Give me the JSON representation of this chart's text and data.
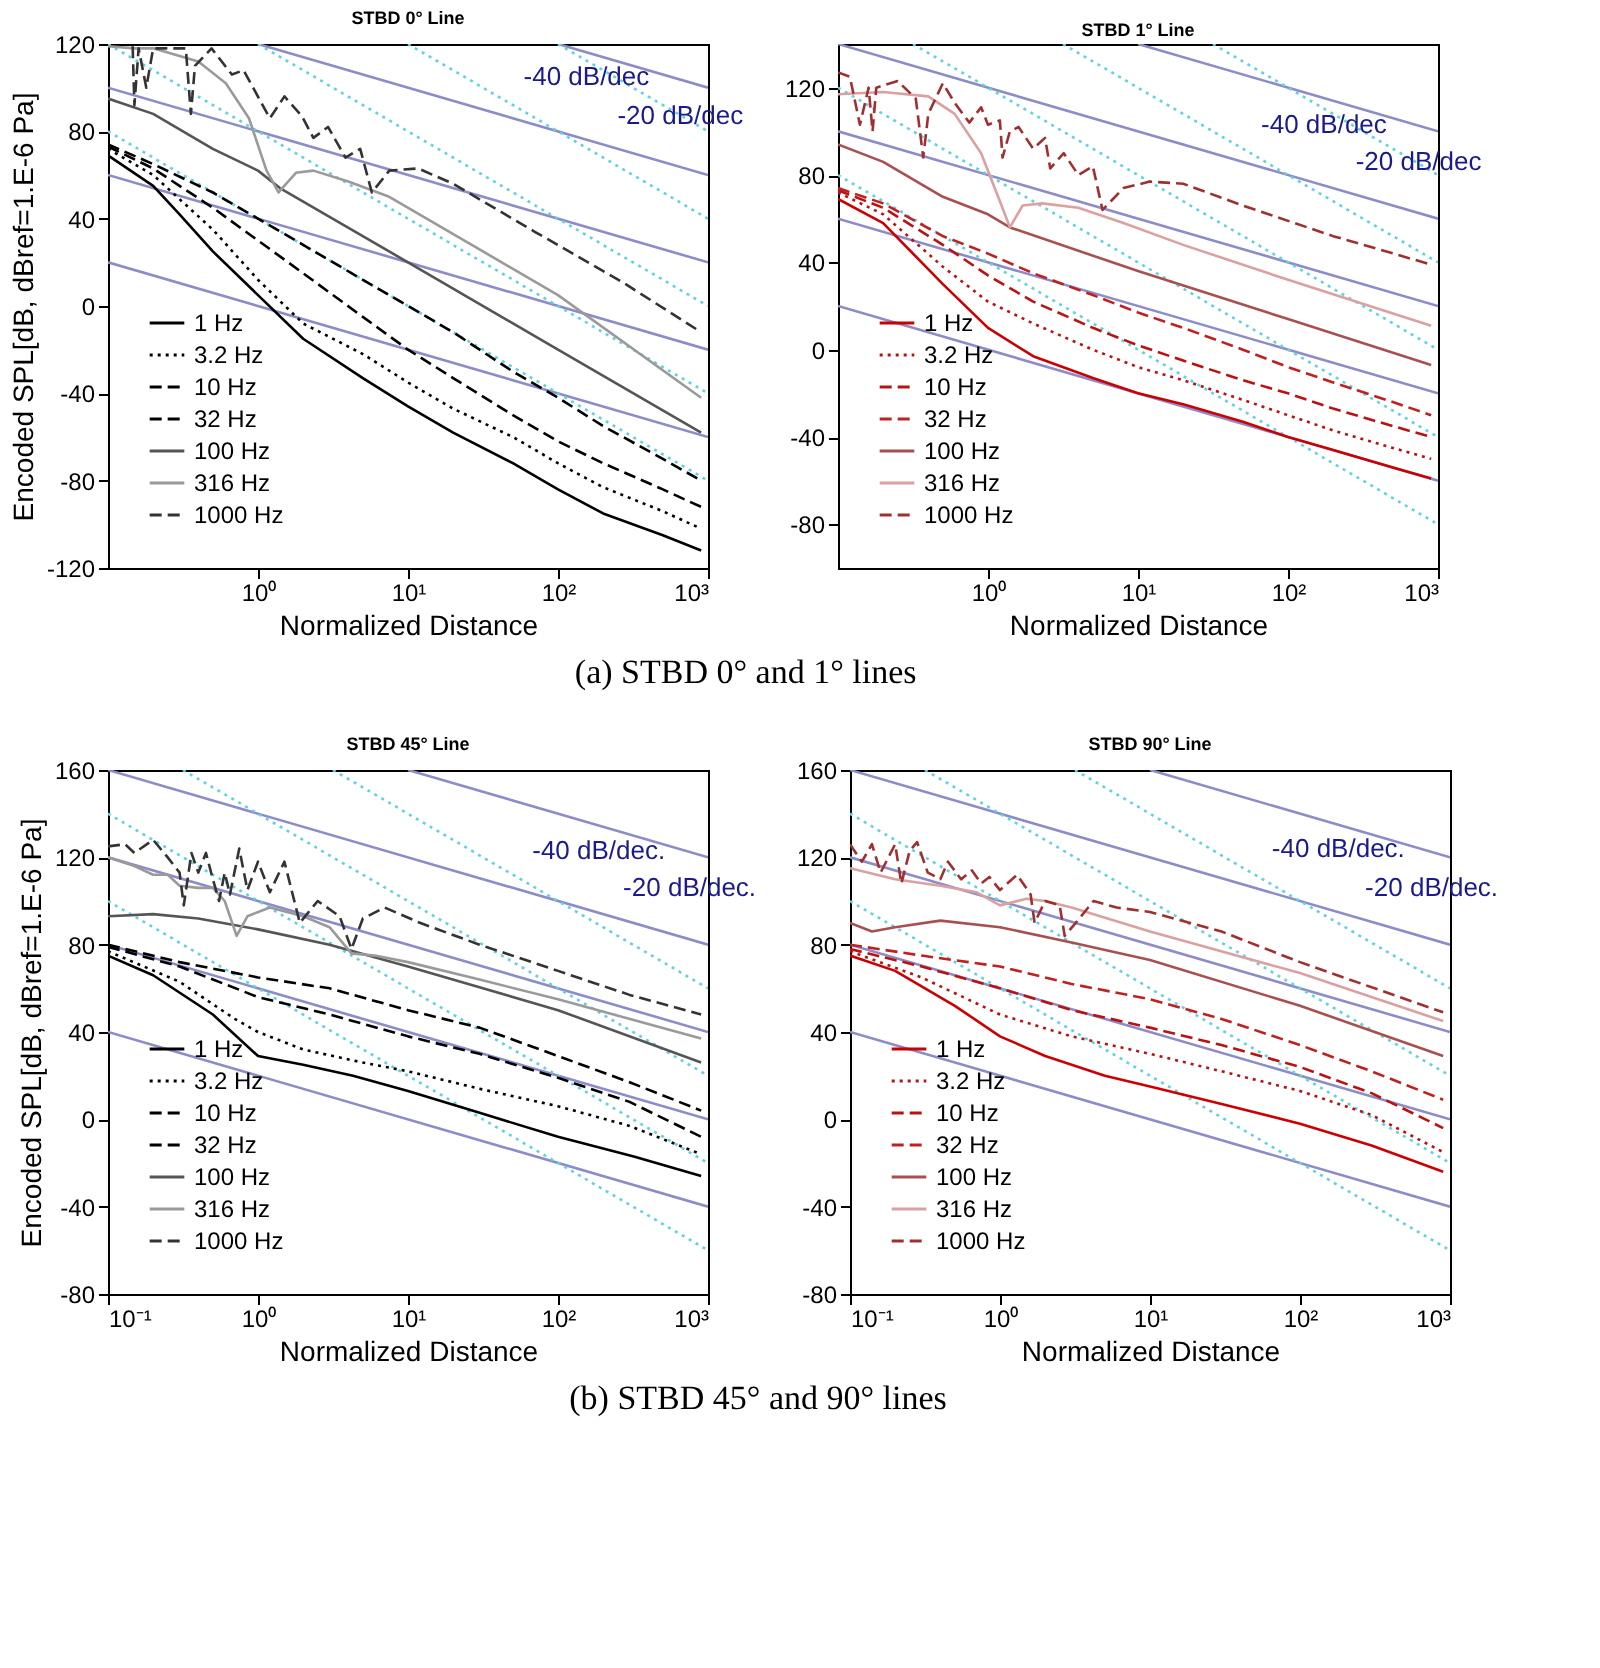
{
  "chart_data": [
    {
      "type": "line",
      "title": "STBD 0° Line",
      "xlabel": "Normalized Distance",
      "ylabel": "Encoded SPL[dB, dBref=1.E-6 Pa]",
      "log": "x",
      "xlim": [
        0.1,
        1000
      ],
      "ylim": [
        -120,
        120
      ],
      "xticks": [
        {
          "value": 1,
          "label": "10⁰"
        },
        {
          "value": 10,
          "label": "10¹"
        },
        {
          "value": 100,
          "label": "10²"
        },
        {
          "value": 1000,
          "label": "10³"
        }
      ],
      "yticks": [
        -120,
        -80,
        -40,
        0,
        40,
        80,
        120
      ],
      "legend": "bottom left",
      "annotations": [
        {
          "text": "-40 dB/dec",
          "x": 49,
          "y": 92
        },
        {
          "text": "-20 dB/dec",
          "x": 207,
          "y": 74
        },
        "(a) STBD 0° and 1° lines"
      ],
      "series": [
        {
          "name": "1 Hz",
          "color": "#000000",
          "line_style": "solid",
          "x": [
            0.1,
            0.2,
            0.3,
            0.5,
            1,
            2,
            5,
            10,
            20,
            50,
            100,
            200,
            500,
            900
          ],
          "values": [
            69,
            55,
            42,
            25,
            5,
            -15,
            -33,
            -46,
            -58,
            -72,
            -84,
            -95,
            -105,
            -112
          ]
        },
        {
          "name": "3.2 Hz",
          "color": "#000000",
          "line_style": "dotted",
          "x": [
            0.1,
            0.2,
            0.5,
            1,
            2,
            5,
            10,
            20,
            50,
            100,
            200,
            500,
            900
          ],
          "values": [
            72,
            60,
            35,
            12,
            -8,
            -22,
            -35,
            -47,
            -60,
            -72,
            -83,
            -94,
            -102
          ]
        },
        {
          "name": "10 Hz",
          "color": "#000000",
          "line_style": "dashed",
          "x": [
            0.1,
            0.2,
            0.5,
            1,
            2,
            5,
            10,
            20,
            50,
            100,
            200,
            500,
            900
          ],
          "values": [
            73,
            63,
            45,
            30,
            15,
            -5,
            -20,
            -33,
            -50,
            -62,
            -72,
            -84,
            -92
          ]
        },
        {
          "name": "32 Hz",
          "color": "#000000",
          "line_style": "dashed",
          "x": [
            0.1,
            0.2,
            0.5,
            1,
            2,
            5,
            10,
            20,
            50,
            100,
            200,
            500,
            900
          ],
          "values": [
            74,
            65,
            52,
            40,
            28,
            12,
            0,
            -12,
            -30,
            -42,
            -55,
            -70,
            -80
          ]
        },
        {
          "name": "100 Hz",
          "color": "#555555",
          "line_style": "solid",
          "x": [
            0.1,
            0.2,
            0.5,
            1,
            1.4,
            10,
            100,
            900
          ],
          "values": [
            95,
            88,
            72,
            62,
            54,
            20,
            -20,
            -58
          ]
        },
        {
          "name": "316 Hz",
          "color": "#9a9a9a",
          "line_style": "solid",
          "x": [
            0.1,
            0.15,
            0.2,
            0.4,
            0.61,
            0.87,
            1.14,
            1.37,
            1.79,
            2.34,
            4,
            7.5,
            100,
            900
          ],
          "values": [
            119,
            118,
            118,
            112,
            102,
            86,
            62,
            52,
            61,
            62,
            57,
            50,
            5,
            -42
          ]
        },
        {
          "name": "1000 Hz",
          "color": "#333333",
          "line_style": "dashed",
          "x": [
            0.146,
            0.15,
            0.16,
            0.18,
            0.2,
            0.33,
            0.357,
            0.38,
            0.49,
            0.67,
            0.8,
            1.2,
            1.5,
            1.96,
            2.34,
            2.93,
            3.83,
            4.8,
            5.74,
            7.5,
            11.7,
            20,
            70,
            268,
            900
          ],
          "values": [
            119,
            92,
            118,
            100,
            118,
            118,
            88,
            110,
            118,
            106,
            108,
            86,
            96,
            87,
            77,
            82,
            68,
            72,
            52,
            62,
            63,
            56,
            34,
            11,
            -12
          ]
        },
        {
          "color": "#8c8cc8",
          "line_style": "solid",
          "x": [
            0.1,
            1000
          ],
          "values": [
            20,
            -60
          ]
        },
        {
          "color": "#8c8cc8",
          "line_style": "solid",
          "x": [
            0.1,
            1000
          ],
          "values": [
            60,
            -20
          ]
        },
        {
          "color": "#8c8cc8",
          "line_style": "solid",
          "x": [
            0.1,
            1000
          ],
          "values": [
            100,
            20
          ]
        },
        {
          "color": "#8c8cc8",
          "line_style": "solid",
          "x": [
            1,
            1000
          ],
          "values": [
            120,
            60
          ]
        },
        {
          "color": "#8c8cc8",
          "line_style": "solid",
          "x": [
            100,
            1000
          ],
          "values": [
            120,
            100
          ]
        },
        {
          "color": "#5fd3e0",
          "line_style": "dotted",
          "x": [
            0.1,
            1000
          ],
          "values": [
            80,
            -80
          ]
        },
        {
          "color": "#5fd3e0",
          "line_style": "dotted",
          "x": [
            0.1,
            1000
          ],
          "values": [
            120,
            -40
          ]
        },
        {
          "color": "#5fd3e0",
          "line_style": "dotted",
          "x": [
            1,
            1000
          ],
          "values": [
            120,
            0
          ]
        },
        {
          "color": "#5fd3e0",
          "line_style": "dotted",
          "x": [
            10,
            1000
          ],
          "values": [
            120,
            40
          ]
        },
        {
          "color": "#5fd3e0",
          "line_style": "dotted",
          "x": [
            100,
            1000
          ],
          "values": [
            120,
            80
          ]
        }
      ]
    },
    {
      "type": "line",
      "title": "STBD 1° Line",
      "xlabel": "Normalized Distance",
      "log": "x",
      "xlim": [
        0.1,
        1000
      ],
      "ylim": [
        -100,
        140
      ],
      "xticks": [
        {
          "value": 1,
          "label": "10⁰"
        },
        {
          "value": 10,
          "label": "10¹"
        },
        {
          "value": 100,
          "label": "10²"
        },
        {
          "value": 1000,
          "label": "10³"
        }
      ],
      "yticks": [
        -80,
        -40,
        0,
        40,
        80,
        120
      ],
      "legend": "bottom left",
      "annotations": [
        {
          "text": "-40 dB/dec",
          "x": 55,
          "y": 90
        },
        {
          "text": "-20 dB/dec",
          "x": 235,
          "y": 73
        }
      ],
      "series": [
        {
          "name": "1 Hz",
          "color": "#cc0000",
          "line_style": "solid",
          "x": [
            0.1,
            0.2,
            0.5,
            1,
            2,
            5,
            10,
            20,
            50,
            100,
            200,
            500,
            900
          ],
          "values": [
            69,
            58,
            30,
            10,
            -3,
            -13,
            -20,
            -25,
            -33,
            -40,
            -46,
            -54,
            -59
          ]
        },
        {
          "name": "3.2 Hz",
          "color": "#bb1111",
          "line_style": "dotted",
          "x": [
            0.1,
            0.2,
            0.5,
            1,
            2,
            5,
            10,
            20,
            50,
            100,
            200,
            500,
            900
          ],
          "values": [
            72,
            62,
            38,
            22,
            12,
            0,
            -8,
            -14,
            -23,
            -30,
            -37,
            -45,
            -50
          ]
        },
        {
          "name": "10 Hz",
          "color": "#bb1111",
          "line_style": "dashed",
          "x": [
            0.1,
            0.2,
            0.5,
            1,
            2,
            5,
            10,
            20,
            50,
            100,
            200,
            500,
            900
          ],
          "values": [
            73,
            65,
            48,
            34,
            22,
            10,
            2,
            -5,
            -14,
            -20,
            -27,
            -35,
            -40
          ]
        },
        {
          "name": "32 Hz",
          "color": "#c02020",
          "line_style": "dashed",
          "x": [
            0.1,
            0.2,
            0.5,
            1,
            2,
            5,
            10,
            20,
            50,
            100,
            200,
            500,
            900
          ],
          "values": [
            74,
            67,
            52,
            44,
            35,
            25,
            17,
            10,
            0,
            -8,
            -15,
            -24,
            -30
          ]
        },
        {
          "name": "100 Hz",
          "color": "#a85050",
          "line_style": "solid",
          "x": [
            0.1,
            0.2,
            0.5,
            1,
            1.4,
            10,
            100,
            900
          ],
          "values": [
            94,
            86,
            70,
            62,
            56,
            36,
            14,
            -7
          ]
        },
        {
          "name": "316 Hz",
          "color": "#dba0a0",
          "line_style": "solid",
          "x": [
            0.1,
            0.2,
            0.4,
            0.6,
            0.9,
            1.2,
            1.4,
            1.7,
            2.3,
            4,
            8,
            20,
            100,
            900
          ],
          "values": [
            117,
            118,
            116,
            108,
            90,
            68,
            56,
            66,
            67,
            65,
            58,
            48,
            32,
            11
          ]
        },
        {
          "name": "1000 Hz",
          "color": "#a03030",
          "line_style": "dashed",
          "x": [
            0.1,
            0.12,
            0.14,
            0.16,
            0.17,
            0.18,
            0.25,
            0.33,
            0.37,
            0.4,
            0.5,
            0.6,
            0.75,
            0.9,
            1.0,
            1.2,
            1.25,
            1.4,
            1.6,
            2,
            2.4,
            2.6,
            3.2,
            4,
            5,
            5.8,
            8,
            12,
            20,
            50,
            200,
            900
          ],
          "values": [
            127,
            125,
            103,
            120,
            100,
            120,
            123,
            115,
            88,
            108,
            122,
            113,
            104,
            111,
            103,
            105,
            88,
            100,
            102,
            92,
            97,
            83,
            90,
            80,
            84,
            64,
            74,
            77,
            76,
            66,
            52,
            39
          ]
        },
        {
          "color": "#8c8cc8",
          "line_style": "solid",
          "x": [
            0.1,
            1000
          ],
          "values": [
            20,
            -60
          ]
        },
        {
          "color": "#8c8cc8",
          "line_style": "solid",
          "x": [
            0.1,
            1000
          ],
          "values": [
            60,
            -20
          ]
        },
        {
          "color": "#8c8cc8",
          "line_style": "solid",
          "x": [
            0.1,
            1000
          ],
          "values": [
            100,
            20
          ]
        },
        {
          "color": "#8c8cc8",
          "line_style": "solid",
          "x": [
            0.1,
            1000
          ],
          "values": [
            140,
            60
          ]
        },
        {
          "color": "#8c8cc8",
          "line_style": "solid",
          "x": [
            10,
            1000
          ],
          "values": [
            140,
            100
          ]
        },
        {
          "color": "#5fd3e0",
          "line_style": "dotted",
          "x": [
            0.1,
            1000
          ],
          "values": [
            80,
            -80
          ]
        },
        {
          "color": "#5fd3e0",
          "line_style": "dotted",
          "x": [
            0.1,
            1000
          ],
          "values": [
            120,
            -40
          ]
        },
        {
          "color": "#5fd3e0",
          "line_style": "dotted",
          "x": [
            0.316,
            1000
          ],
          "values": [
            140,
            0
          ]
        },
        {
          "color": "#5fd3e0",
          "line_style": "dotted",
          "x": [
            3.16,
            1000
          ],
          "values": [
            140,
            40
          ]
        },
        {
          "color": "#5fd3e0",
          "line_style": "dotted",
          "x": [
            31.6,
            1000
          ],
          "values": [
            140,
            80
          ]
        }
      ]
    },
    {
      "type": "line",
      "title": "STBD 45° Line",
      "xlabel": "Normalized Distance",
      "ylabel": "Encoded SPL[dB, dBref=1.E-6 Pa]",
      "log": "x",
      "xlim": [
        0.1,
        1000
      ],
      "ylim": [
        -80,
        160
      ],
      "xticks": [
        {
          "value": 0.1,
          "label": "10⁻¹"
        },
        {
          "value": 1,
          "label": "10⁰"
        },
        {
          "value": 10,
          "label": "10¹"
        },
        {
          "value": 100,
          "label": "10²"
        },
        {
          "value": 1000,
          "label": "10³"
        }
      ],
      "yticks": [
        -80,
        -40,
        0,
        40,
        80,
        120,
        160
      ],
      "legend": "bottom left",
      "annotations": [
        {
          "text": "-40 dB/dec.",
          "x": 56,
          "y": 110
        },
        {
          "text": "-20 dB/dec.",
          "x": 226,
          "y": 93
        },
        "(b) STBD 45° and 90° lines"
      ],
      "series": [
        {
          "name": "1 Hz",
          "color": "#000000",
          "line_style": "solid",
          "x": [
            0.1,
            0.2,
            0.5,
            1,
            2,
            4.3,
            10,
            30,
            100,
            320,
            900
          ],
          "values": [
            75,
            66,
            48,
            29,
            25,
            20,
            13,
            3,
            -8,
            -17,
            -26
          ]
        },
        {
          "name": "3.2 Hz",
          "color": "#000000",
          "line_style": "dotted",
          "x": [
            0.1,
            0.3,
            0.7,
            1,
            2,
            5,
            10,
            30,
            100,
            300,
            900
          ],
          "values": [
            77,
            63,
            46,
            40,
            32,
            26,
            22,
            14,
            6,
            -3,
            -16
          ]
        },
        {
          "name": "10 Hz",
          "color": "#000000",
          "line_style": "dashed",
          "x": [
            0.1,
            0.3,
            1,
            3,
            10,
            30,
            100,
            300,
            900
          ],
          "values": [
            79,
            70,
            56,
            48,
            38,
            30,
            19,
            8,
            -8
          ]
        },
        {
          "name": "32 Hz",
          "color": "#000000",
          "line_style": "dashed",
          "x": [
            0.1,
            0.3,
            1,
            3,
            10,
            30,
            100,
            300,
            900
          ],
          "values": [
            80,
            72,
            65,
            60,
            50,
            42,
            29,
            17,
            4
          ]
        },
        {
          "name": "100 Hz",
          "color": "#555555",
          "line_style": "solid",
          "x": [
            0.1,
            0.2,
            0.4,
            1,
            3,
            10,
            100,
            900
          ],
          "values": [
            93,
            94,
            92,
            87,
            80,
            70,
            50,
            26
          ]
        },
        {
          "name": "316 Hz",
          "color": "#9a9a9a",
          "line_style": "solid",
          "x": [
            0.1,
            0.15,
            0.2,
            0.25,
            0.3,
            0.4,
            0.5,
            0.6,
            0.72,
            0.85,
            1.2,
            2,
            3,
            4.2,
            6,
            10,
            30,
            100,
            900
          ],
          "values": [
            120,
            116,
            112,
            112,
            107,
            106,
            106,
            100,
            84,
            93,
            97,
            93,
            88,
            76,
            75,
            72,
            64,
            55,
            37
          ]
        },
        {
          "name": "1000 Hz",
          "color": "#333333",
          "line_style": "dashed",
          "x": [
            0.1,
            0.13,
            0.15,
            0.2,
            0.25,
            0.3,
            0.32,
            0.36,
            0.4,
            0.45,
            0.5,
            0.55,
            0.6,
            0.65,
            0.75,
            0.85,
            1,
            1.2,
            1.5,
            1.9,
            2.5,
            3.5,
            4.2,
            5,
            7,
            12,
            30,
            100,
            300,
            900
          ],
          "values": [
            125,
            126,
            122,
            128,
            120,
            113,
            98,
            122,
            113,
            122,
            110,
            100,
            113,
            103,
            124,
            105,
            118,
            104,
            118,
            90,
            100,
            93,
            78,
            92,
            97,
            90,
            80,
            68,
            57,
            48
          ]
        },
        {
          "color": "#8c8cc8",
          "line_style": "solid",
          "x": [
            0.1,
            1000
          ],
          "values": [
            40,
            -40
          ]
        },
        {
          "color": "#8c8cc8",
          "line_style": "solid",
          "x": [
            0.1,
            1000
          ],
          "values": [
            80,
            0
          ]
        },
        {
          "color": "#8c8cc8",
          "line_style": "solid",
          "x": [
            0.1,
            1000
          ],
          "values": [
            120,
            40
          ]
        },
        {
          "color": "#8c8cc8",
          "line_style": "solid",
          "x": [
            0.1,
            1000
          ],
          "values": [
            160,
            80
          ]
        },
        {
          "color": "#8c8cc8",
          "line_style": "solid",
          "x": [
            10,
            1000
          ],
          "values": [
            160,
            120
          ]
        },
        {
          "color": "#5fd3e0",
          "line_style": "dotted",
          "x": [
            0.1,
            1000
          ],
          "values": [
            100,
            -60
          ]
        },
        {
          "color": "#5fd3e0",
          "line_style": "dotted",
          "x": [
            0.1,
            1000
          ],
          "values": [
            140,
            -20
          ]
        },
        {
          "color": "#5fd3e0",
          "line_style": "dotted",
          "x": [
            0.316,
            1000
          ],
          "values": [
            160,
            20
          ]
        },
        {
          "color": "#5fd3e0",
          "line_style": "dotted",
          "x": [
            3.16,
            1000
          ],
          "values": [
            160,
            60
          ]
        }
      ]
    },
    {
      "type": "line",
      "title": "STBD 90° Line",
      "xlabel": "Normalized Distance",
      "log": "x",
      "xlim": [
        0.1,
        1000
      ],
      "ylim": [
        -80,
        160
      ],
      "xticks": [
        {
          "value": 0.1,
          "label": "10⁻¹"
        },
        {
          "value": 1,
          "label": "10⁰"
        },
        {
          "value": 10,
          "label": "10¹"
        },
        {
          "value": 100,
          "label": "10²"
        },
        {
          "value": 1000,
          "label": "10³"
        }
      ],
      "yticks": [
        -80,
        -40,
        0,
        40,
        80,
        120,
        160
      ],
      "legend": "bottom left",
      "annotations": [
        {
          "text": "-40 dB/dec.",
          "x": 54,
          "y": 111
        },
        {
          "text": "-20 dB/dec.",
          "x": 226,
          "y": 93
        }
      ],
      "series": [
        {
          "name": "1 Hz",
          "color": "#cc0000",
          "line_style": "solid",
          "x": [
            0.1,
            0.2,
            0.5,
            1,
            2,
            5,
            10,
            30,
            100,
            300,
            900
          ],
          "values": [
            75,
            68,
            52,
            38,
            29,
            20,
            15,
            7,
            -2,
            -12,
            -24
          ]
        },
        {
          "name": "3.2 Hz",
          "color": "#bb1111",
          "line_style": "dotted",
          "x": [
            0.1,
            0.3,
            1,
            3,
            10,
            30,
            100,
            300,
            900
          ],
          "values": [
            77,
            65,
            48,
            38,
            30,
            22,
            13,
            2,
            -15
          ]
        },
        {
          "name": "10 Hz",
          "color": "#bb1111",
          "line_style": "dashed",
          "x": [
            0.1,
            0.3,
            1,
            3,
            10,
            30,
            100,
            300,
            900
          ],
          "values": [
            78,
            70,
            60,
            50,
            42,
            34,
            24,
            12,
            -4
          ]
        },
        {
          "name": "32 Hz",
          "color": "#c02020",
          "line_style": "dashed",
          "x": [
            0.1,
            0.3,
            1,
            3,
            10,
            30,
            100,
            300,
            900
          ],
          "values": [
            80,
            75,
            70,
            62,
            55,
            46,
            34,
            22,
            9
          ]
        },
        {
          "name": "100 Hz",
          "color": "#a85050",
          "line_style": "solid",
          "x": [
            0.1,
            0.14,
            0.2,
            0.4,
            1,
            3,
            10,
            100,
            900
          ],
          "values": [
            90,
            86,
            88,
            91,
            88,
            81,
            73,
            52,
            29
          ]
        },
        {
          "name": "316 Hz",
          "color": "#dba0a0",
          "line_style": "solid",
          "x": [
            0.1,
            0.2,
            0.4,
            0.7,
            1,
            1.5,
            2,
            3,
            10,
            100,
            900
          ],
          "values": [
            115,
            110,
            107,
            104,
            98,
            101,
            100,
            97,
            86,
            67,
            45
          ]
        },
        {
          "name": "1000 Hz",
          "color": "#a03030",
          "line_style": "dashed",
          "x": [
            0.1,
            0.12,
            0.14,
            0.16,
            0.2,
            0.22,
            0.25,
            0.28,
            0.33,
            0.4,
            0.45,
            0.55,
            0.65,
            0.75,
            0.85,
            1,
            1.3,
            1.6,
            1.7,
            2,
            2.5,
            2.7,
            3.2,
            4.2,
            6,
            10,
            30,
            100,
            900
          ],
          "values": [
            126,
            118,
            126,
            113,
            126,
            108,
            123,
            127,
            113,
            110,
            118,
            110,
            114,
            108,
            111,
            105,
            112,
            103,
            90,
            100,
            98,
            84,
            90,
            100,
            97,
            95,
            86,
            72,
            49
          ]
        },
        {
          "color": "#8c8cc8",
          "line_style": "solid",
          "x": [
            0.1,
            1000
          ],
          "values": [
            40,
            -40
          ]
        },
        {
          "color": "#8c8cc8",
          "line_style": "solid",
          "x": [
            0.1,
            1000
          ],
          "values": [
            80,
            0
          ]
        },
        {
          "color": "#8c8cc8",
          "line_style": "solid",
          "x": [
            0.1,
            1000
          ],
          "values": [
            120,
            40
          ]
        },
        {
          "color": "#8c8cc8",
          "line_style": "solid",
          "x": [
            0.1,
            1000
          ],
          "values": [
            160,
            80
          ]
        },
        {
          "color": "#8c8cc8",
          "line_style": "solid",
          "x": [
            10,
            1000
          ],
          "values": [
            160,
            120
          ]
        },
        {
          "color": "#5fd3e0",
          "line_style": "dotted",
          "x": [
            0.1,
            1000
          ],
          "values": [
            100,
            -60
          ]
        },
        {
          "color": "#5fd3e0",
          "line_style": "dotted",
          "x": [
            0.1,
            1000
          ],
          "values": [
            140,
            -20
          ]
        },
        {
          "color": "#5fd3e0",
          "line_style": "dotted",
          "x": [
            0.316,
            1000
          ],
          "values": [
            160,
            20
          ]
        },
        {
          "color": "#5fd3e0",
          "line_style": "dotted",
          "x": [
            3.16,
            1000
          ],
          "values": [
            160,
            60
          ]
        }
      ]
    }
  ]
}
